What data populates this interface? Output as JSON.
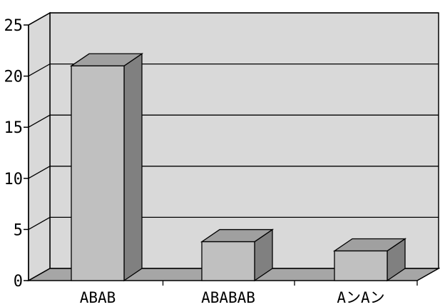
{
  "chart_data": {
    "type": "bar",
    "style": "3d-column",
    "title": "",
    "xlabel": "",
    "ylabel": "",
    "categories": [
      "ABAB",
      "ABABAB",
      "AンAン"
    ],
    "values": [
      21,
      3.8,
      2.9
    ],
    "ylim": [
      0,
      25
    ],
    "yticks": [
      "0",
      "5",
      "10",
      "15",
      "20",
      "25"
    ],
    "grid": true,
    "legend": "none",
    "colors": {
      "wall": "#d9d9d9",
      "floor": "#a6a6a6",
      "bar_front": "#c0c0c0",
      "bar_top": "#a0a0a0",
      "bar_side": "#808080",
      "gridline": "#000000"
    }
  }
}
